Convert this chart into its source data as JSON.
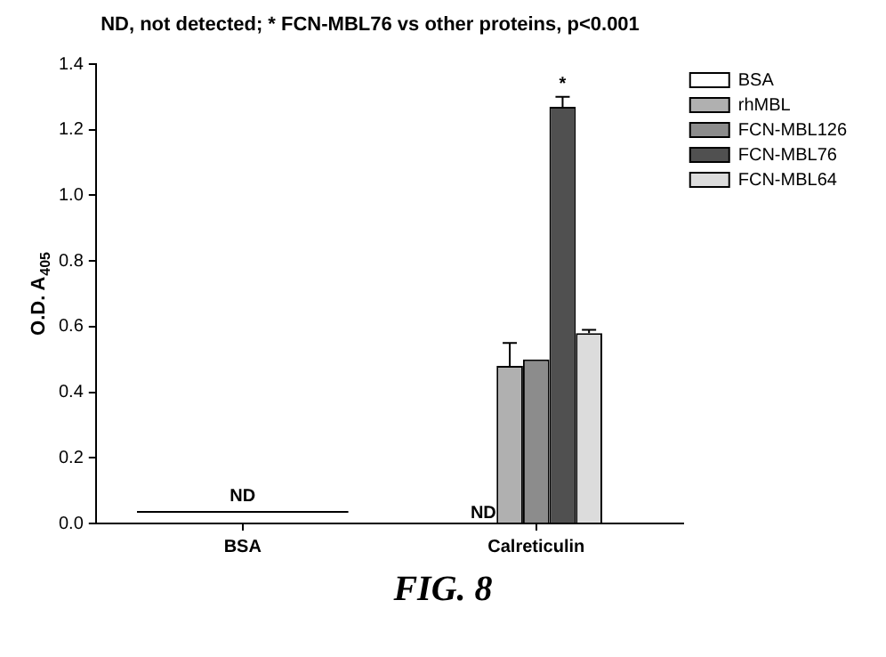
{
  "chart_data": {
    "type": "bar",
    "title": "ND, not detected; * FCN-MBL76 vs other proteins, p<0.001",
    "ylabel": "O.D. A$_{405}$",
    "categories": [
      "BSA",
      "Calreticulin"
    ],
    "series": [
      {
        "name": "BSA",
        "color": "#ffffff",
        "values": [
          null,
          null
        ],
        "value_labels": [
          null,
          "ND"
        ]
      },
      {
        "name": "rhMBL",
        "color": "#b0b0b0",
        "values": [
          null,
          0.48
        ],
        "errors": [
          null,
          [
            0.48,
            0.55
          ]
        ]
      },
      {
        "name": "FCN-MBL126",
        "color": "#8c8c8c",
        "values": [
          null,
          0.5
        ]
      },
      {
        "name": "FCN-MBL76",
        "color": "#505050",
        "values": [
          null,
          1.27
        ],
        "errors": [
          null,
          [
            1.27,
            1.3
          ]
        ],
        "value_labels": [
          null,
          "*"
        ]
      },
      {
        "name": "FCN-MBL64",
        "color": "#dcdcdc",
        "values": [
          null,
          0.58
        ],
        "errors": [
          null,
          [
            0.58,
            0.59
          ]
        ]
      }
    ],
    "ylim": [
      0,
      1.4
    ],
    "yticks": [
      {
        "value": 0,
        "label": "0.0"
      },
      0.2,
      0.4,
      0.6,
      0.8,
      {
        "value": 1,
        "label": "1.0"
      },
      1.2,
      1.4
    ],
    "grid": false,
    "legend": "top right",
    "ref_lines": [
      {
        "axis": "y",
        "value": 0.035,
        "label": "ND",
        "color": "#000000"
      }
    ],
    "annotations": [
      "FIG. 8"
    ]
  }
}
